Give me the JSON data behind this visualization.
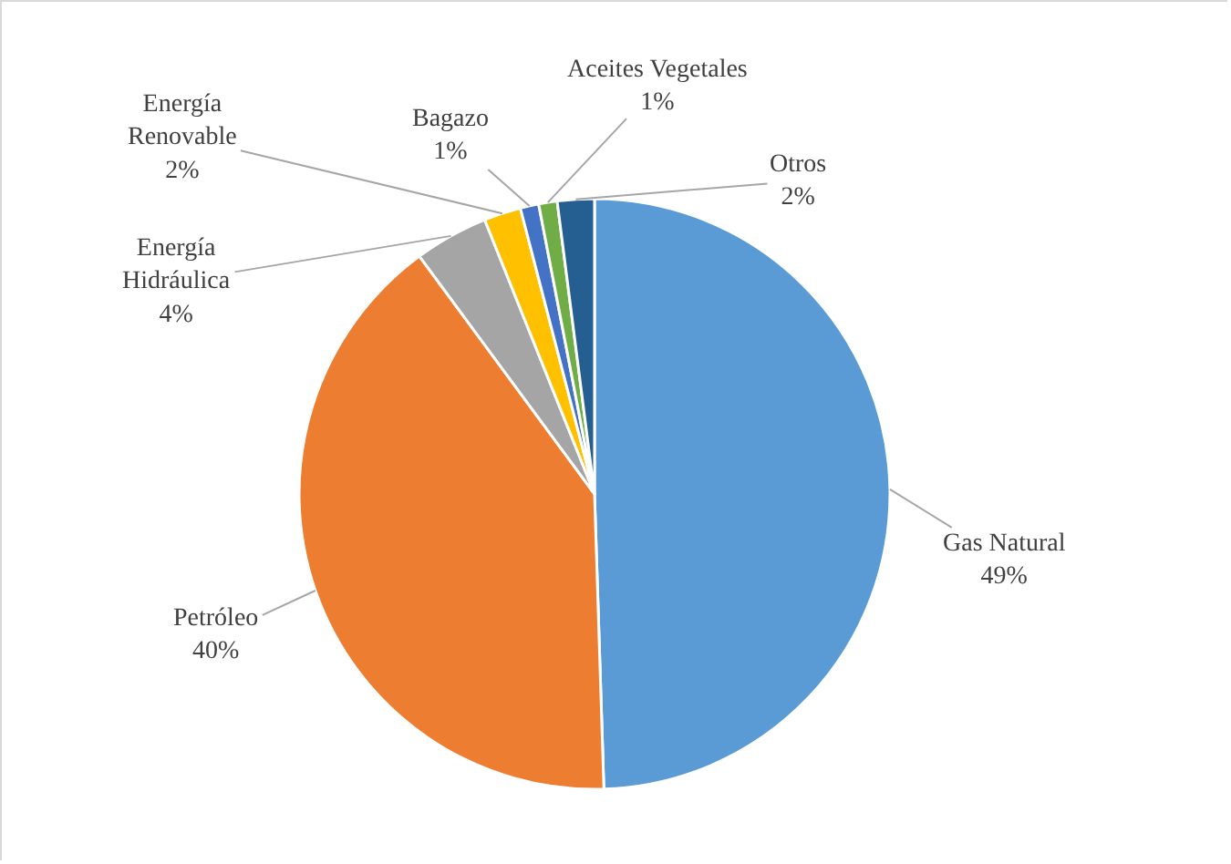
{
  "chart_data": {
    "type": "pie",
    "categories": [
      "Gas Natural",
      "Petróleo",
      "Energía Hidráulica",
      "Energía Renovable",
      "Bagazo",
      "Aceites Vegetales",
      "Otros"
    ],
    "values": [
      49,
      40,
      4,
      2,
      1,
      1,
      2
    ],
    "value_labels": [
      "49%",
      "40%",
      "4%",
      "2%",
      "1%",
      "1%",
      "2%"
    ],
    "colors": [
      "#5b9bd5",
      "#ed7d31",
      "#a5a5a5",
      "#ffc000",
      "#4472c4",
      "#70ad47",
      "#255e91"
    ],
    "legend": false
  }
}
